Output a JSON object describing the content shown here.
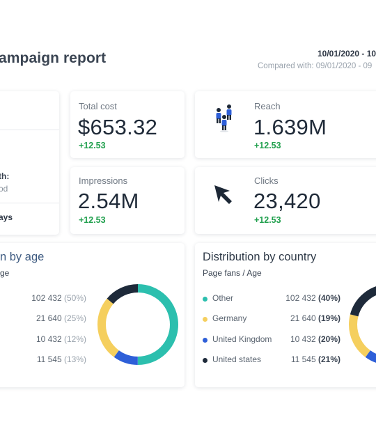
{
  "header": {
    "title": "ampaign report",
    "date": "10/01/2020 - 10",
    "compared": "Compared with: 09/01/2020 - 09"
  },
  "left_card": {
    "text_1": "th:",
    "text_2": "od",
    "text_3": "ays"
  },
  "kpis": {
    "total_cost": {
      "label": "Total cost",
      "value": "$653.32",
      "delta": "+12.53"
    },
    "reach": {
      "label": "Reach",
      "value": "1.639M",
      "delta": "+12.53",
      "icon": "people-icon"
    },
    "impressions": {
      "label": "Impressions",
      "value": "2.54M",
      "delta": "+12.53"
    },
    "clicks": {
      "label": "Clicks",
      "value": "23,420",
      "delta": "+12.53",
      "icon": "cursor-icon"
    }
  },
  "distribution_age": {
    "title": "n by age",
    "subtitle": "ge",
    "rows": [
      {
        "value": "102 432",
        "pct": "(50%)"
      },
      {
        "value": "21 640",
        "pct": "(25%)"
      },
      {
        "value": "10 432",
        "pct": "(12%)"
      },
      {
        "value": "11 545",
        "pct": "(13%)"
      }
    ]
  },
  "distribution_country": {
    "title": "Distribution by country",
    "subtitle": "Page fans / Age",
    "rows": [
      {
        "label": "Other",
        "value": "102 432",
        "pct": "(40%)",
        "color": "#2cbfae"
      },
      {
        "label": "Germany",
        "value": "21 640",
        "pct": "(19%)",
        "color": "#f5cf5e"
      },
      {
        "label": "United Kingdom",
        "value": "10 432",
        "pct": "(20%)",
        "color": "#2e5fd8"
      },
      {
        "label": "United states",
        "value": "11 545",
        "pct": "(21%)",
        "color": "#1e2a3a"
      }
    ]
  },
  "colors": {
    "teal": "#2cbfae",
    "yellow": "#f5cf5e",
    "blue": "#2e5fd8",
    "navy": "#1e2a3a",
    "green": "#21a04e"
  }
}
